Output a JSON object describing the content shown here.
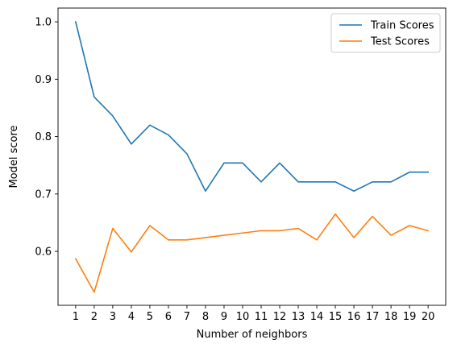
{
  "chart_data": {
    "type": "line",
    "title": "",
    "xlabel": "Number of neighbors",
    "ylabel": "Model score",
    "x": [
      1,
      2,
      3,
      4,
      5,
      6,
      7,
      8,
      9,
      10,
      11,
      12,
      13,
      14,
      15,
      16,
      17,
      18,
      19,
      20
    ],
    "xlim": [
      0.05,
      20.95
    ],
    "ylim": [
      0.506,
      1.024
    ],
    "yticks": [
      0.6,
      0.7,
      0.8,
      0.9,
      1.0
    ],
    "grid": false,
    "legend_position": "top-right",
    "series": [
      {
        "name": "Train Scores",
        "color": "#1f77b4",
        "values": [
          1.0,
          0.869,
          0.836,
          0.787,
          0.82,
          0.803,
          0.77,
          0.705,
          0.754,
          0.754,
          0.721,
          0.754,
          0.721,
          0.721,
          0.721,
          0.705,
          0.721,
          0.721,
          0.738,
          0.738
        ]
      },
      {
        "name": "Test Scores",
        "color": "#ff7f0e",
        "values": [
          0.587,
          0.529,
          0.64,
          0.599,
          0.645,
          0.62,
          0.62,
          0.624,
          0.628,
          0.632,
          0.636,
          0.636,
          0.64,
          0.62,
          0.665,
          0.624,
          0.661,
          0.628,
          0.645,
          0.636
        ]
      }
    ]
  }
}
